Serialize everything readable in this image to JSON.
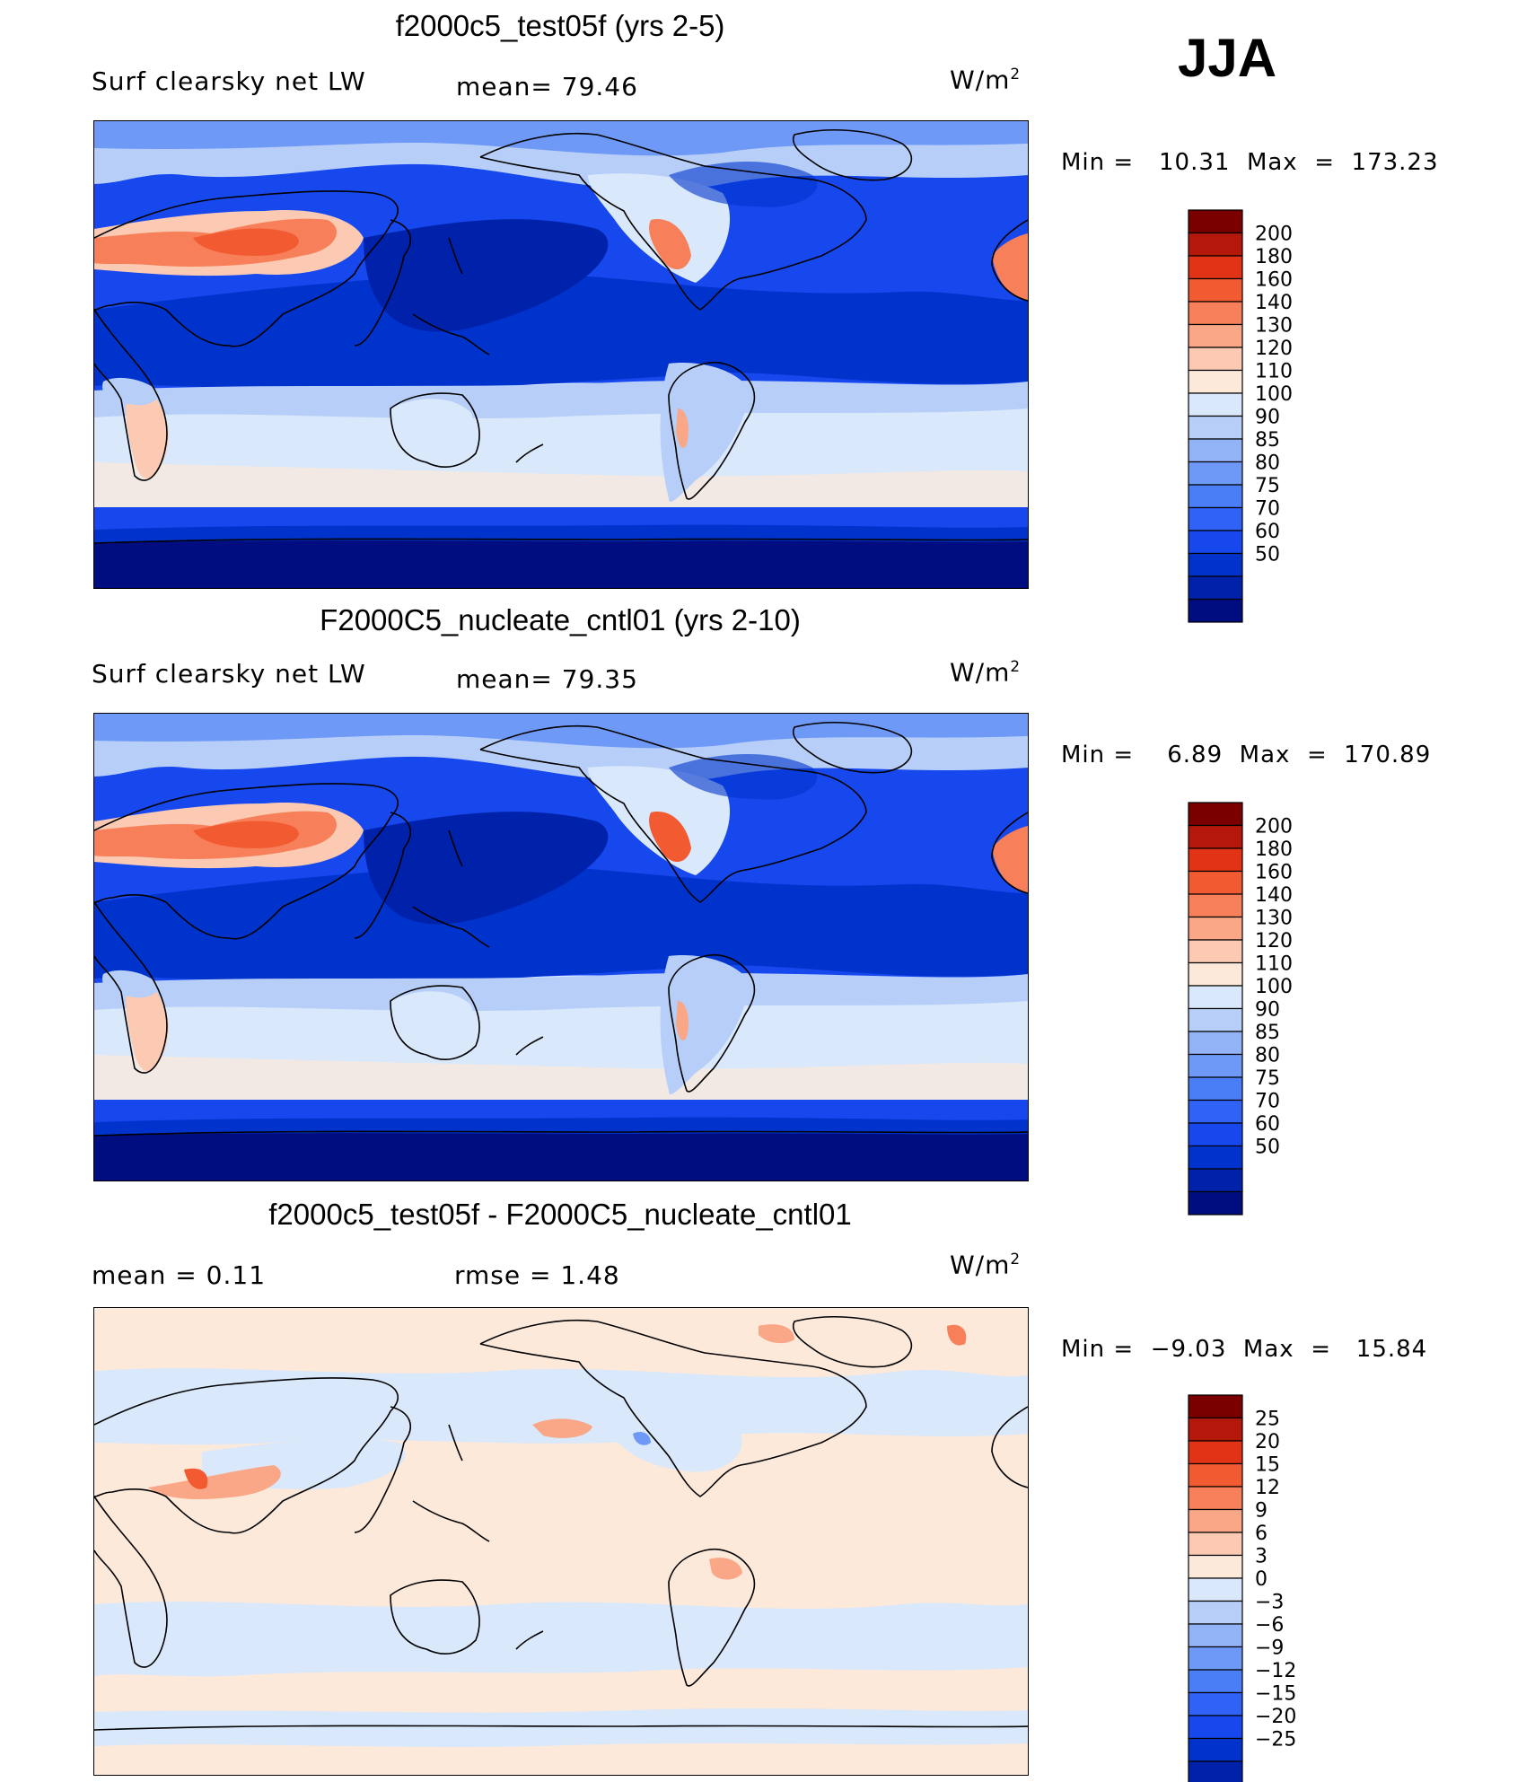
{
  "season": "JJA",
  "colors": {
    "abs_scale": [
      "#000d80",
      "#0022aa",
      "#0033cc",
      "#1648ee",
      "#2f62f5",
      "#4a7ef6",
      "#6f99f6",
      "#92b4f7",
      "#b7cff8",
      "#d9e8fb",
      "#fde9da",
      "#fccab3",
      "#f9a786",
      "#f7805a",
      "#f25a32",
      "#e23316",
      "#b5180a",
      "#7a0000"
    ],
    "diff_scale": [
      "#000d80",
      "#0022aa",
      "#0033cc",
      "#1648ee",
      "#2f62f5",
      "#4a7ef6",
      "#6f99f6",
      "#92b4f7",
      "#b7cff8",
      "#d9e8fb",
      "#fde9da",
      "#fccab3",
      "#f9a786",
      "#f7805a",
      "#f25a32",
      "#e23316",
      "#b5180a",
      "#7a0000"
    ]
  },
  "panels": [
    {
      "title": "f2000c5_test05f (yrs 2-5)",
      "variable": "Surf clearsky net LW",
      "stat1": "mean=   79.46",
      "stat2": "",
      "units_base": "W/m",
      "units_exp": "2",
      "minmax": "Min =   10.31  Max  =  173.23",
      "levels": [
        "50",
        "60",
        "70",
        "75",
        "80",
        "85",
        "90",
        "100",
        "110",
        "120",
        "130",
        "140",
        "160",
        "180",
        "200"
      ]
    },
    {
      "title": "F2000C5_nucleate_cntl01 (yrs 2-10)",
      "variable": "Surf clearsky net LW",
      "stat1": "mean=   79.35",
      "stat2": "",
      "units_base": "W/m",
      "units_exp": "2",
      "minmax": "Min =    6.89  Max  =  170.89",
      "levels": [
        "50",
        "60",
        "70",
        "75",
        "80",
        "85",
        "90",
        "100",
        "110",
        "120",
        "130",
        "140",
        "160",
        "180",
        "200"
      ]
    },
    {
      "title": "f2000c5_test05f - F2000C5_nucleate_cntl01",
      "variable": "mean  =     0.11",
      "stat1": "rmse  =     1.48",
      "stat2": "",
      "units_base": "W/m",
      "units_exp": "2",
      "minmax": "Min =  −9.03  Max  =   15.84",
      "levels": [
        "−25",
        "−20",
        "−15",
        "−12",
        "−9",
        "−6",
        "−3",
        "0",
        "3",
        "6",
        "9",
        "12",
        "15",
        "20",
        "25"
      ]
    }
  ]
}
